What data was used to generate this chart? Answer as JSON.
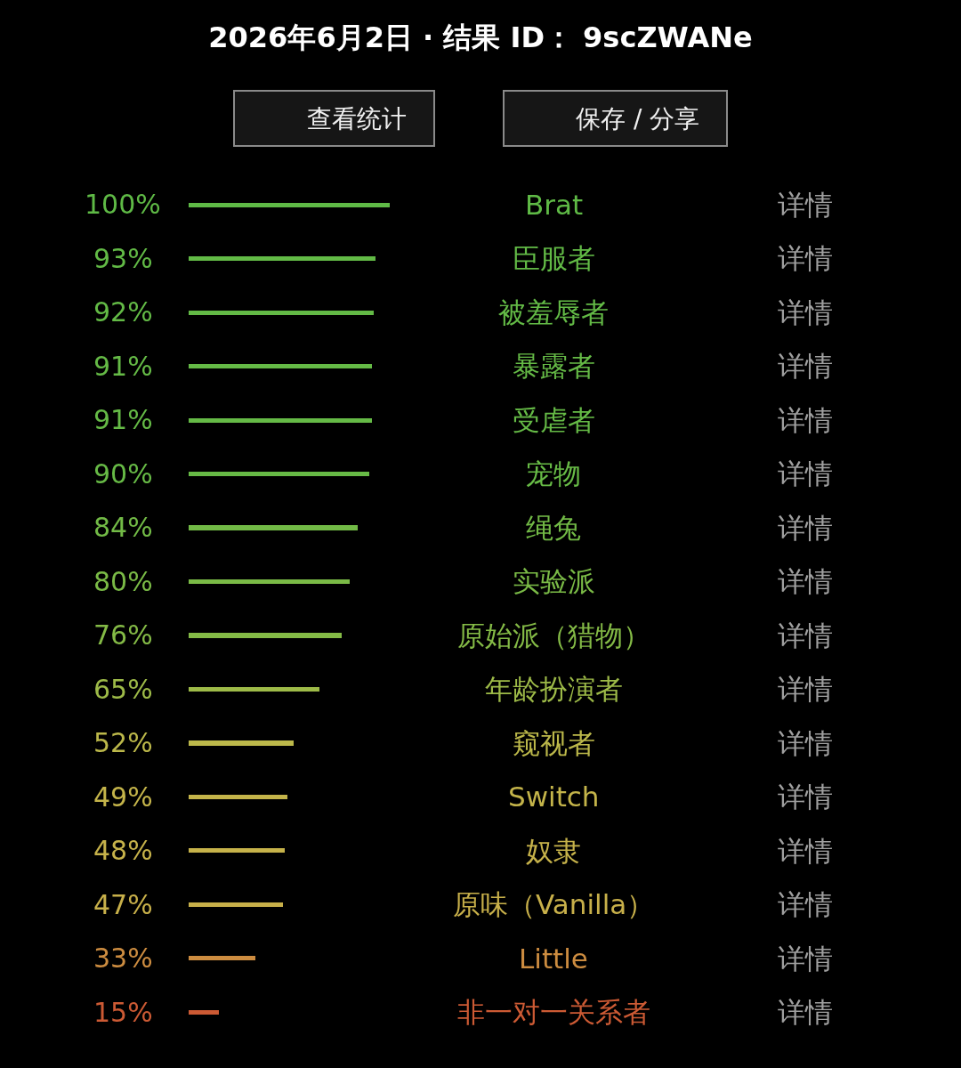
{
  "chart_data": {
    "type": "bar",
    "orientation": "horizontal",
    "title": "2026年6月2日 · 结果 ID： 9scZWANe",
    "categories": [
      "Brat",
      "臣服者",
      "被羞辱者",
      "暴露者",
      "受虐者",
      "宠物",
      "绳兔",
      "实验派",
      "原始派（猎物）",
      "年龄扮演者",
      "窥视者",
      "Switch",
      "奴隶",
      "原味（Vanilla）",
      "Little",
      "非一对一关系者"
    ],
    "values": [
      100,
      93,
      92,
      91,
      91,
      90,
      84,
      80,
      76,
      65,
      52,
      49,
      48,
      47,
      33,
      15
    ],
    "value_labels": [
      "100%",
      "93%",
      "92%",
      "91%",
      "91%",
      "90%",
      "84%",
      "80%",
      "76%",
      "65%",
      "52%",
      "49%",
      "48%",
      "47%",
      "33%",
      "15%"
    ],
    "colors": [
      "#5fba46",
      "#62ba46",
      "#63ba46",
      "#65ba46",
      "#65ba46",
      "#67ba46",
      "#72ba46",
      "#7aba46",
      "#84ba46",
      "#9dba48",
      "#bcb84a",
      "#c4b44a",
      "#c6b24a",
      "#c8b04a",
      "#cc8c40",
      "#cc5a34"
    ],
    "tick_labels": "y",
    "annotations": [
      "查看统计",
      "保存 / 分享",
      "详情",
      "详情",
      "详情",
      "详情",
      "详情",
      "详情",
      "详情",
      "详情",
      "详情",
      "详情",
      "详情",
      "详情",
      "详情",
      "详情",
      "详情",
      "详情"
    ]
  }
}
